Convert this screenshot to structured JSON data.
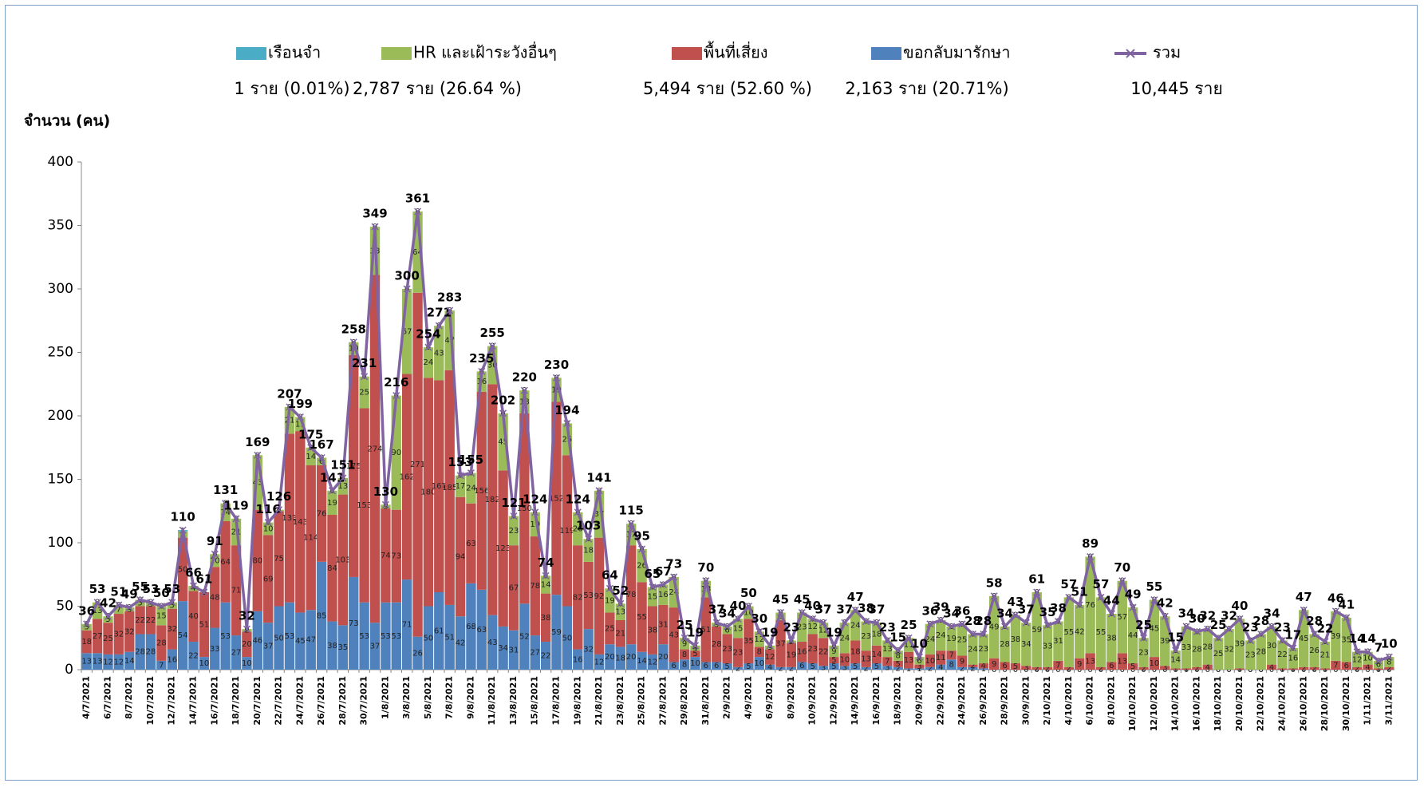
{
  "chart_data": {
    "type": "bar",
    "stacked": true,
    "y_label": "จำนวน (คน)",
    "categories": [
      "4/7/2021",
      null,
      "6/7/2021",
      null,
      "8/7/2021",
      null,
      "10/7/2021",
      null,
      "12/7/2021",
      null,
      "14/7/2021",
      null,
      "16/7/2021",
      null,
      "18/7/2021",
      null,
      "20/7/2021",
      null,
      "22/7/2021",
      null,
      "24/7/2021",
      null,
      "26/7/2021",
      null,
      "28/7/2021",
      null,
      "30/7/2021",
      null,
      "1/8/2021",
      null,
      "3/8/2021",
      null,
      "5/8/2021",
      null,
      "7/8/2021",
      null,
      "9/8/2021",
      null,
      "11/8/2021",
      null,
      "13/8/2021",
      null,
      "15/8/2021",
      null,
      "17/8/2021",
      null,
      "19/8/2021",
      null,
      "21/8/2021",
      null,
      "23/8/2021",
      null,
      "25/8/2021",
      null,
      "27/8/2021",
      null,
      "29/8/2021",
      null,
      "31/8/2021",
      null,
      "2/9/2021",
      null,
      "4/9/2021",
      null,
      "6/9/2021",
      null,
      "8/9/2021",
      null,
      "10/9/2021",
      null,
      "12/9/2021",
      null,
      "14/9/2021",
      null,
      "16/9/2021",
      null,
      "18/9/2021",
      null,
      "20/9/2021",
      null,
      "22/9/2021",
      null,
      "24/9/2021",
      null,
      "26/9/2021",
      null,
      "28/9/2021",
      null,
      "30/9/2021",
      null,
      "2/10/2021",
      null,
      "4/10/2021",
      null,
      "6/10/2021",
      null,
      "8/10/2021",
      null,
      "10/10/2021",
      null,
      "12/10/2021",
      null,
      "14/10/2021",
      null,
      "16/10/2021",
      null,
      "18/10/2021",
      null,
      "20/10/2021",
      null,
      "22/10/2021",
      null,
      "24/10/2021",
      null,
      "26/10/2021",
      null,
      "28/10/2021",
      null,
      "30/10/2021",
      null,
      "1/11/2021",
      null,
      "3/11/2021"
    ],
    "series": [
      {
        "name": "เรือนจำ",
        "summary": "1 ราย  (0.01%)",
        "color": "#4bacc6",
        "values": [
          0,
          0,
          0,
          0,
          0,
          0,
          0,
          0,
          0,
          1,
          0,
          0,
          0,
          0,
          0,
          0,
          0,
          0,
          0,
          0,
          0,
          0,
          0,
          0,
          0,
          0,
          0,
          0,
          0,
          0,
          0,
          0,
          0,
          0,
          0,
          0,
          0,
          0,
          0,
          0,
          0,
          0,
          0,
          0,
          0,
          0,
          0,
          0,
          0,
          0,
          0,
          0,
          0,
          0,
          0,
          0,
          0,
          0,
          0,
          0,
          0,
          0,
          0,
          0,
          0,
          0,
          0,
          0,
          0,
          0,
          0,
          0,
          0,
          0,
          0,
          0,
          0,
          0,
          0,
          0,
          0,
          0,
          0,
          0,
          0,
          0,
          0,
          0,
          0,
          0,
          0,
          0,
          0,
          0,
          0,
          0,
          0,
          0,
          0,
          0,
          0,
          0,
          0,
          0,
          0,
          0,
          0,
          0,
          0,
          0,
          0,
          0,
          0,
          0,
          0,
          0,
          0,
          0,
          0,
          0,
          0,
          0,
          0
        ]
      },
      {
        "name": "HR และเฝ้าระวังอื่นๆ",
        "summary": "2,787 ราย  (26.64 %)",
        "color": "#9bbb59",
        "values": [
          5,
          13,
          5,
          7,
          3,
          5,
          3,
          15,
          5,
          5,
          4,
          0,
          10,
          14,
          21,
          2,
          43,
          10,
          1,
          21,
          11,
          14,
          6,
          19,
          13,
          10,
          25,
          38,
          3,
          90,
          67,
          64,
          24,
          43,
          47,
          17,
          24,
          16,
          30,
          45,
          23,
          18,
          19,
          14,
          19,
          25,
          26,
          18,
          37,
          19,
          13,
          17,
          26,
          15,
          16,
          24,
          9,
          4,
          13,
          3,
          6,
          15,
          10,
          12,
          3,
          6,
          2,
          23,
          12,
          12,
          9,
          24,
          24,
          23,
          18,
          13,
          8,
          11,
          6,
          24,
          24,
          19,
          25,
          24,
          23,
          49,
          28,
          38,
          34,
          59,
          33,
          31,
          55,
          42,
          76,
          55,
          38,
          57,
          44,
          23,
          45,
          39,
          14,
          33,
          28,
          28,
          25,
          32,
          39,
          23,
          28,
          30,
          22,
          16,
          45,
          26,
          21,
          39,
          35,
          12,
          10,
          6,
          8
        ]
      },
      {
        "name": "พื้นที่เสี่ยง",
        "summary": "5,494 ราย  (52.60 %)",
        "color": "#c0504d",
        "values": [
          18,
          27,
          25,
          32,
          32,
          22,
          22,
          28,
          32,
          50,
          40,
          51,
          48,
          64,
          71,
          20,
          80,
          69,
          75,
          133,
          143,
          114,
          76,
          84,
          103,
          175,
          153,
          274,
          74,
          73,
          162,
          271,
          180,
          167,
          185,
          94,
          63,
          156,
          182,
          123,
          67,
          150,
          78,
          38,
          152,
          119,
          82,
          53,
          92,
          25,
          21,
          78,
          55,
          38,
          31,
          43,
          8,
          5,
          51,
          28,
          23,
          23,
          35,
          8,
          12,
          37,
          19,
          16,
          23,
          22,
          5,
          10,
          18,
          13,
          14,
          7,
          5,
          13,
          3,
          10,
          11,
          7,
          9,
          2,
          4,
          9,
          6,
          5,
          3,
          2,
          2,
          7,
          2,
          9,
          13,
          2,
          6,
          13,
          5,
          2,
          10,
          3,
          1,
          1,
          2,
          4,
          0,
          0,
          1,
          0,
          0,
          4,
          1,
          1,
          2,
          2,
          1,
          7,
          6,
          2,
          4,
          1,
          2
        ]
      },
      {
        "name": "ขอกลับมารักษา",
        "summary": "2,163 ราย  (20.71%)",
        "color": "#4f81bd",
        "values": [
          13,
          13,
          12,
          12,
          14,
          28,
          28,
          7,
          16,
          54,
          22,
          10,
          33,
          53,
          27,
          10,
          46,
          37,
          50,
          53,
          45,
          47,
          85,
          38,
          35,
          73,
          53,
          37,
          53,
          53,
          71,
          26,
          50,
          61,
          51,
          42,
          68,
          63,
          43,
          34,
          31,
          52,
          27,
          22,
          59,
          50,
          16,
          32,
          12,
          20,
          18,
          20,
          14,
          12,
          20,
          6,
          8,
          10,
          6,
          6,
          5,
          2,
          5,
          10,
          4,
          2,
          2,
          6,
          5,
          3,
          5,
          3,
          5,
          2,
          5,
          3,
          2,
          1,
          1,
          2,
          4,
          8,
          2,
          2,
          1,
          0,
          0,
          0,
          0,
          0,
          0,
          0,
          0,
          0,
          0,
          0,
          0,
          0,
          0,
          0,
          0,
          0,
          0,
          0,
          0,
          0,
          0,
          0,
          0,
          0,
          0,
          0,
          0,
          0,
          0,
          0,
          0,
          0,
          0,
          0,
          0,
          0,
          0
        ]
      },
      {
        "name": "รวม",
        "summary": "10,445  ราย",
        "color": "#8064a2",
        "kind": "line",
        "values": [
          36,
          53,
          42,
          51,
          49,
          55,
          53,
          50,
          53,
          110,
          66,
          61,
          91,
          131,
          119,
          32,
          169,
          116,
          126,
          207,
          199,
          175,
          167,
          141,
          151,
          258,
          231,
          349,
          130,
          216,
          300,
          361,
          254,
          271,
          283,
          153,
          155,
          235,
          255,
          202,
          121,
          220,
          124,
          74,
          230,
          194,
          124,
          103,
          141,
          64,
          52,
          115,
          95,
          65,
          67,
          73,
          25,
          19,
          70,
          37,
          34,
          40,
          50,
          30,
          19,
          45,
          23,
          45,
          40,
          37,
          19,
          37,
          47,
          38,
          37,
          23,
          15,
          25,
          10,
          36,
          39,
          34,
          36,
          28,
          28,
          58,
          34,
          43,
          37,
          61,
          35,
          38,
          57,
          51,
          89,
          57,
          44,
          70,
          49,
          25,
          55,
          42,
          15,
          34,
          30,
          32,
          25,
          32,
          40,
          23,
          28,
          34,
          23,
          17,
          47,
          28,
          22,
          46,
          41,
          14,
          14,
          7,
          10
        ]
      }
    ],
    "ylim": [
      0,
      400
    ],
    "yticks": [
      0,
      50,
      100,
      150,
      200,
      250,
      300,
      350,
      400
    ]
  }
}
